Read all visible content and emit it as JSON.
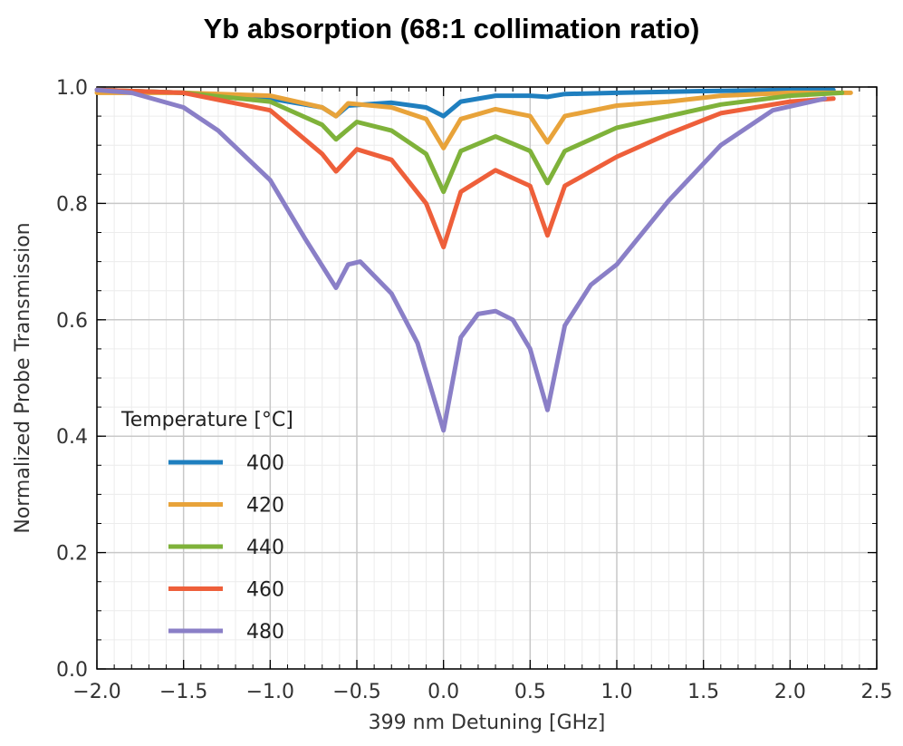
{
  "chart_data": {
    "type": "line",
    "title": "Yb absorption (68:1 collimation ratio)",
    "xlabel": "399 nm Detuning [GHz]",
    "ylabel": "Normalized Probe Transmission",
    "xlim": [
      -2.0,
      2.5
    ],
    "ylim": [
      0.0,
      1.0
    ],
    "xticks": [
      "−2.0",
      "−1.5",
      "−1.0",
      "−0.5",
      "0.0",
      "0.5",
      "1.0",
      "1.5",
      "2.0",
      "2.5"
    ],
    "yticks": [
      "0.0",
      "0.2",
      "0.4",
      "0.6",
      "0.8",
      "1.0"
    ],
    "grid": true,
    "legend_title": "Temperature [°C]",
    "legend_position": "lower-left",
    "series": [
      {
        "name": "400",
        "color": "#1f7fbf",
        "x": [
          -2.0,
          -1.5,
          -1.0,
          -0.7,
          -0.62,
          -0.55,
          -0.3,
          -0.1,
          0.0,
          0.1,
          0.3,
          0.5,
          0.6,
          0.7,
          1.0,
          1.5,
          2.0,
          2.25
        ],
        "y": [
          0.995,
          0.99,
          0.98,
          0.965,
          0.95,
          0.968,
          0.973,
          0.965,
          0.95,
          0.975,
          0.985,
          0.985,
          0.983,
          0.988,
          0.99,
          0.993,
          0.995,
          0.995
        ]
      },
      {
        "name": "420",
        "color": "#e8a33a",
        "x": [
          -2.0,
          -1.5,
          -1.0,
          -0.7,
          -0.62,
          -0.55,
          -0.3,
          -0.1,
          0.0,
          0.1,
          0.3,
          0.5,
          0.6,
          0.7,
          1.0,
          1.3,
          1.6,
          2.0,
          2.35
        ],
        "y": [
          0.99,
          0.99,
          0.985,
          0.965,
          0.95,
          0.972,
          0.965,
          0.945,
          0.895,
          0.945,
          0.962,
          0.95,
          0.905,
          0.95,
          0.968,
          0.975,
          0.985,
          0.99,
          0.99
        ]
      },
      {
        "name": "440",
        "color": "#7fb23a",
        "x": [
          -2.0,
          -1.5,
          -1.0,
          -0.7,
          -0.62,
          -0.5,
          -0.3,
          -0.1,
          0.0,
          0.1,
          0.3,
          0.5,
          0.6,
          0.7,
          1.0,
          1.3,
          1.6,
          2.0,
          2.3
        ],
        "y": [
          0.995,
          0.99,
          0.975,
          0.935,
          0.91,
          0.94,
          0.925,
          0.885,
          0.82,
          0.89,
          0.915,
          0.89,
          0.835,
          0.89,
          0.93,
          0.95,
          0.97,
          0.985,
          0.99
        ]
      },
      {
        "name": "460",
        "color": "#ee5f3a",
        "x": [
          -2.0,
          -1.5,
          -1.0,
          -0.7,
          -0.62,
          -0.5,
          -0.3,
          -0.1,
          0.0,
          0.1,
          0.3,
          0.5,
          0.6,
          0.7,
          1.0,
          1.3,
          1.6,
          2.0,
          2.25
        ],
        "y": [
          0.995,
          0.99,
          0.96,
          0.885,
          0.855,
          0.893,
          0.875,
          0.8,
          0.725,
          0.82,
          0.857,
          0.83,
          0.745,
          0.83,
          0.88,
          0.92,
          0.955,
          0.975,
          0.98
        ]
      },
      {
        "name": "480",
        "color": "#8a7fc7",
        "x": [
          -2.0,
          -1.8,
          -1.5,
          -1.3,
          -1.0,
          -0.8,
          -0.62,
          -0.55,
          -0.48,
          -0.3,
          -0.15,
          0.0,
          0.1,
          0.2,
          0.3,
          0.4,
          0.5,
          0.6,
          0.7,
          0.85,
          1.0,
          1.3,
          1.6,
          1.9,
          2.2
        ],
        "y": [
          0.995,
          0.99,
          0.965,
          0.925,
          0.84,
          0.74,
          0.655,
          0.695,
          0.7,
          0.645,
          0.56,
          0.41,
          0.57,
          0.61,
          0.615,
          0.6,
          0.55,
          0.445,
          0.59,
          0.66,
          0.695,
          0.805,
          0.9,
          0.96,
          0.98
        ]
      }
    ]
  }
}
